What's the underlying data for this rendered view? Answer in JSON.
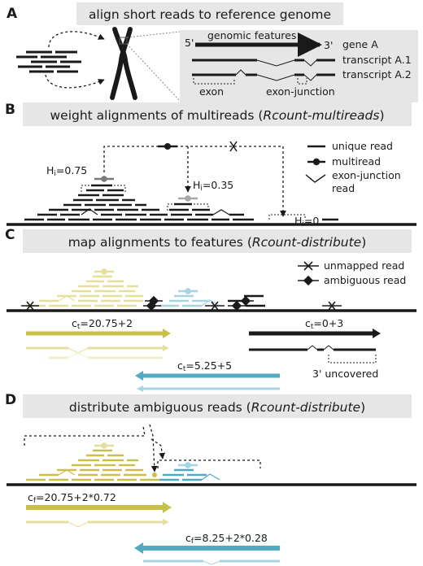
{
  "colors": {
    "black": "#1a1a1a",
    "yellow": "#c9c04a",
    "yellow_light": "#e4df9c",
    "yellow_pale": "#f1eecb",
    "blue": "#52a9c2",
    "blue_light": "#a6d4e2",
    "header_bg": "#e6e6e6",
    "gray_marker": "#9a9a9a"
  },
  "panel_a": {
    "letter": "A",
    "header": "align short reads to reference genome",
    "five_prime": "5'",
    "three_prime": "3'",
    "genomic_features": "genomic features",
    "gene": "gene A",
    "transcript1": "transcript A.1",
    "transcript2": "transcript A.2",
    "exon": "exon",
    "exon_junction": "exon-junction"
  },
  "panel_b": {
    "letter": "B",
    "header_pre": "weight alignments of multireads (",
    "header_em": "Rcount-multireads",
    "header_post": ")",
    "weight1": "H",
    "weight1_sub": "i",
    "weight1_val": "=0.75",
    "weight2_val": "=0.35",
    "weight3_val": "=0",
    "legend_unique": "unique read",
    "legend_multi": "multiread",
    "legend_junction1": "exon-junction",
    "legend_junction2": "read"
  },
  "panel_c": {
    "letter": "C",
    "header_pre": "map alignments to features (",
    "header_em": "Rcount-distribute",
    "header_post": ")",
    "legend_unmapped": "unmapped read",
    "legend_ambiguous": "ambiguous read",
    "count_a_sym": "c",
    "count_a_sub": "t",
    "count_a": "=20.75+2",
    "count_b": "=0+3",
    "count_c": "=5.25+5",
    "uncovered": "3' uncovered"
  },
  "panel_d": {
    "letter": "D",
    "header_pre": "distribute ambiguous reads (",
    "header_em": "Rcount-distribute",
    "header_post": ")",
    "count_a_sym": "c",
    "count_a_sub": "f",
    "count_a": "=20.75+2*0.72",
    "count_b": "=8.25+2*0.28"
  }
}
